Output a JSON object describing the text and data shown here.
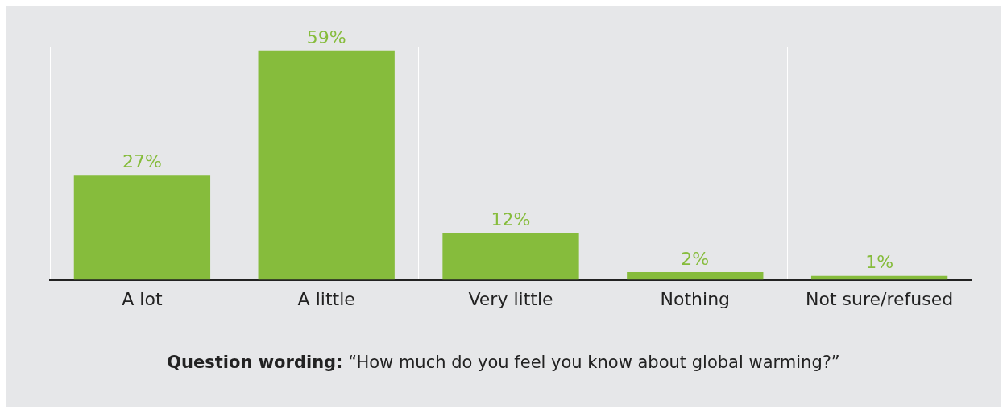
{
  "chart_data": {
    "type": "bar",
    "categories": [
      "A lot",
      "A little",
      "Very little",
      "Nothing",
      "Not sure/refused"
    ],
    "values": [
      27,
      59,
      12,
      2,
      1
    ],
    "color": "#86bc3c",
    "value_labels": [
      "27%",
      "59%",
      "12%",
      "2%",
      "1%"
    ],
    "tick_labels": "x",
    "grid": "x",
    "annotations": [
      "Question wording: “How much do you feel you know about global warming?”"
    ]
  }
}
